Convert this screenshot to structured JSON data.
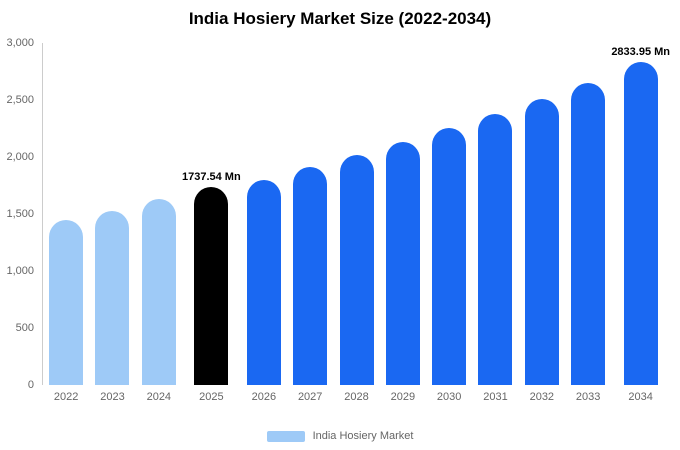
{
  "title": "India Hosiery Market Size (2022-2034)",
  "legend": {
    "label": "India Hosiery Market",
    "swatch_color": "#9ecaf7"
  },
  "palette": {
    "historical": "#9ecaf7",
    "base_year": "#000000",
    "forecast": "#1a68f2"
  },
  "chart_data": {
    "type": "bar",
    "title": "India Hosiery Market Size (2022-2034)",
    "unit": "Mn",
    "xlabel": "",
    "ylabel": "",
    "ylim": [
      0,
      3000
    ],
    "grid": false,
    "legend_position": "bottom",
    "legend_entries": [
      "India Hosiery Market"
    ],
    "y_ticks": [
      {
        "label": "0",
        "value": 0
      },
      {
        "label": "500",
        "value": 500
      },
      {
        "label": "1,000",
        "value": 1000
      },
      {
        "label": "1,500",
        "value": 1500
      },
      {
        "label": "2,000",
        "value": 2000
      },
      {
        "label": "2,500",
        "value": 2500
      },
      {
        "label": "3,000",
        "value": 3000
      }
    ],
    "categories": [
      "2022",
      "2023",
      "2024",
      "2025",
      "2026",
      "2027",
      "2028",
      "2029",
      "2030",
      "2031",
      "2032",
      "2033",
      "2034"
    ],
    "points": [
      {
        "year": "2022",
        "value": 1450,
        "color": "#9ecaf7"
      },
      {
        "year": "2023",
        "value": 1530,
        "color": "#9ecaf7"
      },
      {
        "year": "2024",
        "value": 1630,
        "color": "#9ecaf7"
      },
      {
        "year": "2025",
        "value": 1737.54,
        "color": "#000000",
        "data_label": "1737.54 Mn"
      },
      {
        "year": "2026",
        "value": 1800,
        "color": "#1a68f2"
      },
      {
        "year": "2027",
        "value": 1910,
        "color": "#1a68f2"
      },
      {
        "year": "2028",
        "value": 2020,
        "color": "#1a68f2"
      },
      {
        "year": "2029",
        "value": 2130,
        "color": "#1a68f2"
      },
      {
        "year": "2030",
        "value": 2250,
        "color": "#1a68f2"
      },
      {
        "year": "2031",
        "value": 2380,
        "color": "#1a68f2"
      },
      {
        "year": "2032",
        "value": 2510,
        "color": "#1a68f2"
      },
      {
        "year": "2033",
        "value": 2650,
        "color": "#1a68f2"
      },
      {
        "year": "2034",
        "value": 2833.95,
        "color": "#1a68f2",
        "data_label": "2833.95 Mn"
      }
    ]
  }
}
